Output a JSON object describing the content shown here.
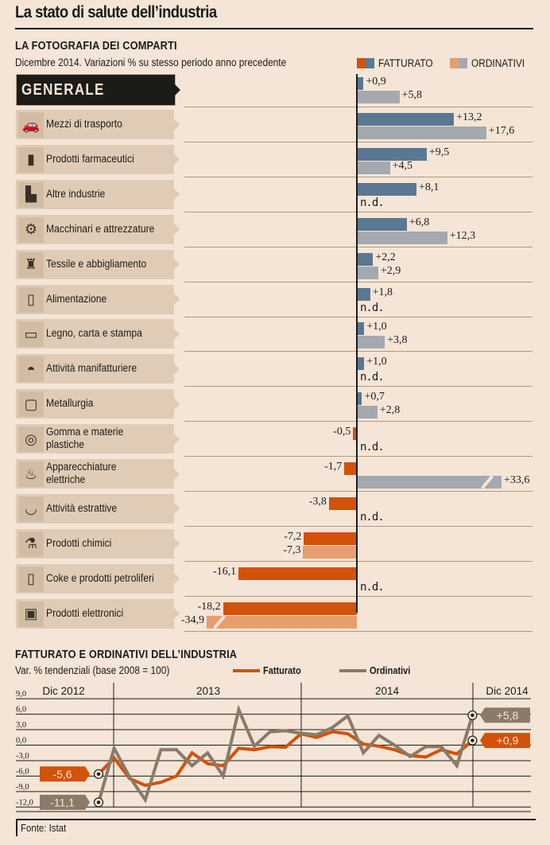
{
  "title": "La stato di salute dell’industria",
  "section1": {
    "title": "LA FOTOGRAFIA DEI COMPARTI",
    "subtitle": "Dicembre 2014. Variazioni % su stesso periodo anno precedente",
    "legend": [
      {
        "label": "FATTURATO",
        "colors": [
          "#d2520a",
          "#5a7891"
        ]
      },
      {
        "label": "ORDINATIVI",
        "colors": [
          "#e59e6e",
          "#a4a9b0"
        ]
      }
    ]
  },
  "section2": {
    "title": "FATTURATO E ORDINATIVI DELL’INDUSTRIA",
    "subtitle": "Var. % tendenziali (base 2008 = 100)",
    "legend": [
      {
        "label": "Fatturato",
        "color": "#d2520a"
      },
      {
        "label": "Ordinativi",
        "color": "#8b7a68"
      }
    ]
  },
  "footer": "Fonte: Istat",
  "nd_label": "n.d.",
  "colors": {
    "fatt_pos": "#5a7891",
    "ord_pos": "#a4a9b0",
    "fatt_neg": "#d2520a",
    "ord_neg": "#e59e6e",
    "line_fatt": "#d2520a",
    "line_ord": "#8b7a68"
  },
  "chart_data": [
    {
      "type": "bar",
      "title": "LA FOTOGRAFIA DEI COMPARTI",
      "subtitle": "Dicembre 2014. Variazioni % su stesso periodo anno precedente",
      "categories": [
        {
          "label": "GENERALE",
          "icon": "none",
          "fatturato": 0.9,
          "ordinativi": 5.8,
          "fatt_text": "+0,9",
          "ord_text": "+5,8"
        },
        {
          "label": "Mezzi di trasporto",
          "icon": "car-icon",
          "fatturato": 13.2,
          "ordinativi": 17.6,
          "fatt_text": "+13,2",
          "ord_text": "+17,6"
        },
        {
          "label": "Prodotti farmaceutici",
          "icon": "medicine-bottle-icon",
          "fatturato": 9.5,
          "ordinativi": 4.5,
          "fatt_text": "+9,5",
          "ord_text": "+4,5"
        },
        {
          "label": "Altre industrie",
          "icon": "factory-icon",
          "fatturato": 8.1,
          "ordinativi": null,
          "fatt_text": "+8,1",
          "ord_text": "n.d."
        },
        {
          "label": "Macchinari e attrezzature",
          "icon": "gears-icon",
          "fatturato": 6.8,
          "ordinativi": 12.3,
          "fatt_text": "+6,8",
          "ord_text": "+12,3"
        },
        {
          "label": "Tessile e abbigliamento",
          "icon": "jacket-icon",
          "fatturato": 2.2,
          "ordinativi": 2.9,
          "fatt_text": "+2,2",
          "ord_text": "+2,9"
        },
        {
          "label": "Alimentazione",
          "icon": "can-icon",
          "fatturato": 1.8,
          "ordinativi": null,
          "fatt_text": "+1,8",
          "ord_text": "n.d."
        },
        {
          "label": "Legno, carta e stampa",
          "icon": "paper-roll-icon",
          "fatturato": 1.0,
          "ordinativi": 3.8,
          "fatt_text": "+1,0",
          "ord_text": "+3,8"
        },
        {
          "label": "Attività manifatturiere",
          "icon": "hard-hat-icon",
          "fatturato": 1.0,
          "ordinativi": null,
          "fatt_text": "+1,0",
          "ord_text": "n.d."
        },
        {
          "label": "Metallurgia",
          "icon": "metal-plate-icon",
          "fatturato": 0.7,
          "ordinativi": 2.8,
          "fatt_text": "+0,7",
          "ord_text": "+2,8"
        },
        {
          "label": "Gomma e materie plastiche",
          "label_lines": [
            "Gomma e materie",
            "plastiche"
          ],
          "icon": "tire-icon",
          "fatturato": -0.5,
          "ordinativi": null,
          "fatt_text": "-0,5",
          "ord_text": "n.d."
        },
        {
          "label": "Apparecchiature elettriche",
          "label_lines": [
            "Apparecchiature",
            "elettriche"
          ],
          "icon": "light-bulb-icon",
          "fatturato": -1.7,
          "ordinativi": 33.6,
          "fatt_text": "-1,7",
          "ord_text": "+33,6",
          "ord_truncated": true
        },
        {
          "label": "Attività estrattive",
          "icon": "mine-cart-icon",
          "fatturato": -3.8,
          "ordinativi": null,
          "fatt_text": "-3,8",
          "ord_text": "n.d."
        },
        {
          "label": "Prodotti chimici",
          "icon": "flask-icon",
          "fatturato": -7.2,
          "ordinativi": -7.3,
          "fatt_text": "-7,2",
          "ord_text": "-7,3"
        },
        {
          "label": "Coke e prodotti petroliferi",
          "icon": "jerrycan-icon",
          "fatturato": -16.1,
          "ordinativi": null,
          "fatt_text": "-16,1",
          "ord_text": "n.d."
        },
        {
          "label": "Prodotti elettronici",
          "icon": "chip-icon",
          "fatturato": -18.2,
          "ordinativi": -34.9,
          "fatt_text": "-18,2",
          "ord_text": "-34,9",
          "ord_truncated": true
        }
      ],
      "series": [
        {
          "name": "FATTURATO"
        },
        {
          "name": "ORDINATIVI"
        }
      ],
      "xlabel": "",
      "ylabel": ""
    },
    {
      "type": "line",
      "title": "FATTURATO E ORDINATIVI DELL’INDUSTRIA",
      "subtitle": "Var. % tendenziali (base 2008 = 100)",
      "period_labels": [
        "Dic 2012",
        "2013",
        "2014",
        "Dic 2014"
      ],
      "x": [
        "Dic 2012",
        "Gen 2013",
        "Feb 2013",
        "Mar 2013",
        "Apr 2013",
        "Mag 2013",
        "Giu 2013",
        "Lug 2013",
        "Ago 2013",
        "Set 2013",
        "Ott 2013",
        "Nov 2013",
        "Dic 2013",
        "Gen 2014",
        "Feb 2014",
        "Mar 2014",
        "Apr 2014",
        "Mag 2014",
        "Giu 2014",
        "Lug 2014",
        "Ago 2014",
        "Set 2014",
        "Ott 2014",
        "Nov 2014",
        "Dic 2014"
      ],
      "series": [
        {
          "name": "Fatturato",
          "values": [
            -5.6,
            -2.5,
            -6.5,
            -7.8,
            -7.2,
            -6.0,
            -1.5,
            -3.6,
            -4.0,
            -0.6,
            -0.9,
            -0.3,
            -0.4,
            2.2,
            1.5,
            2.6,
            2.2,
            0.2,
            -0.2,
            -0.9,
            -2.0,
            -2.3,
            -0.9,
            -1.7,
            0.9
          ]
        },
        {
          "name": "Ordinativi",
          "values": [
            -11.1,
            -0.6,
            -6.2,
            -10.6,
            -0.9,
            -0.9,
            -4.0,
            -1.5,
            -6.0,
            6.9,
            -0.2,
            2.6,
            2.8,
            2.3,
            2.0,
            3.4,
            5.7,
            -1.5,
            1.9,
            0.0,
            -2.2,
            -0.3,
            -0.3,
            -4.0,
            5.8
          ]
        }
      ],
      "start_labels": {
        "Fatturato": "-5,6",
        "Ordinativi": "-11,1"
      },
      "end_labels": {
        "Fatturato": "+0,9",
        "Ordinativi": "+5,8"
      },
      "yticks": [
        "9,0",
        "6,0",
        "3,0",
        "0,0",
        "-3,0",
        "-6,0",
        "-9,0",
        "-12,0"
      ],
      "ytick_values": [
        9,
        6,
        3,
        0,
        -3,
        -6,
        -9,
        -12
      ],
      "ylim": [
        -12,
        9
      ],
      "grid": true,
      "legend": "top"
    }
  ]
}
